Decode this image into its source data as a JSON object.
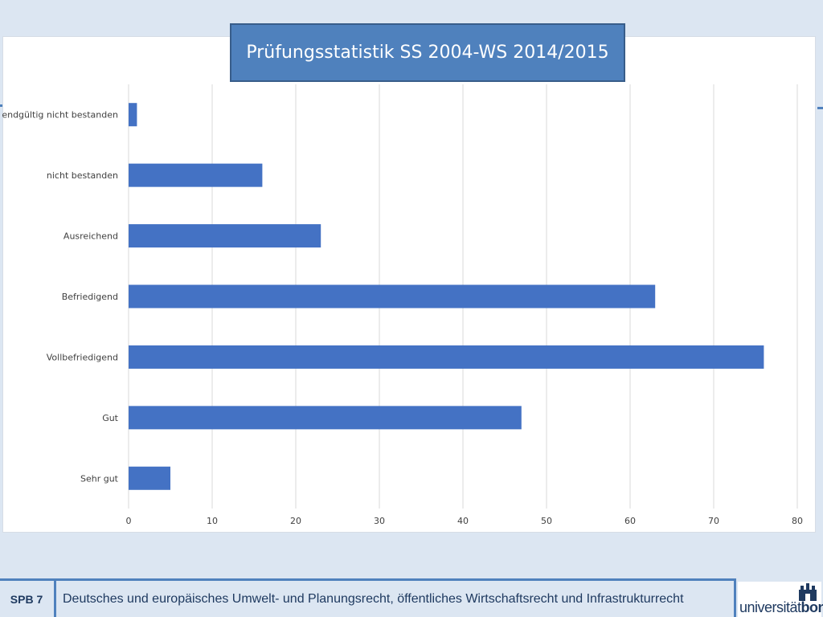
{
  "slide": {
    "footer_code": "SPB 7",
    "footer_text": "Deutsches und europäisches Umwelt- und Planungsrecht, öffentliches Wirtschaftsrecht und Infrastrukturrecht",
    "logo_text_light": "universität",
    "logo_text_bold": "bonn"
  },
  "colors": {
    "bar": "#4472c4",
    "title_box": "#4f81bd",
    "accent": "#4f81bd",
    "gridline": "#d9d9d9"
  },
  "chart_data": {
    "type": "bar",
    "orientation": "horizontal",
    "title": "Prüfungsstatistik SS 2004-WS 2014/2015",
    "categories": [
      "Sehr gut",
      "Gut",
      "Vollbefriedigend",
      "Befriedigend",
      "Ausreichend",
      "nicht bestanden",
      "endgültig nicht bestanden"
    ],
    "values": [
      5,
      47,
      76,
      63,
      23,
      16,
      1
    ],
    "xlim": [
      0,
      80
    ],
    "xticks": [
      0,
      10,
      20,
      30,
      40,
      50,
      60,
      70,
      80
    ],
    "xlabel": "",
    "ylabel": "",
    "grid": true,
    "legend": "none"
  }
}
